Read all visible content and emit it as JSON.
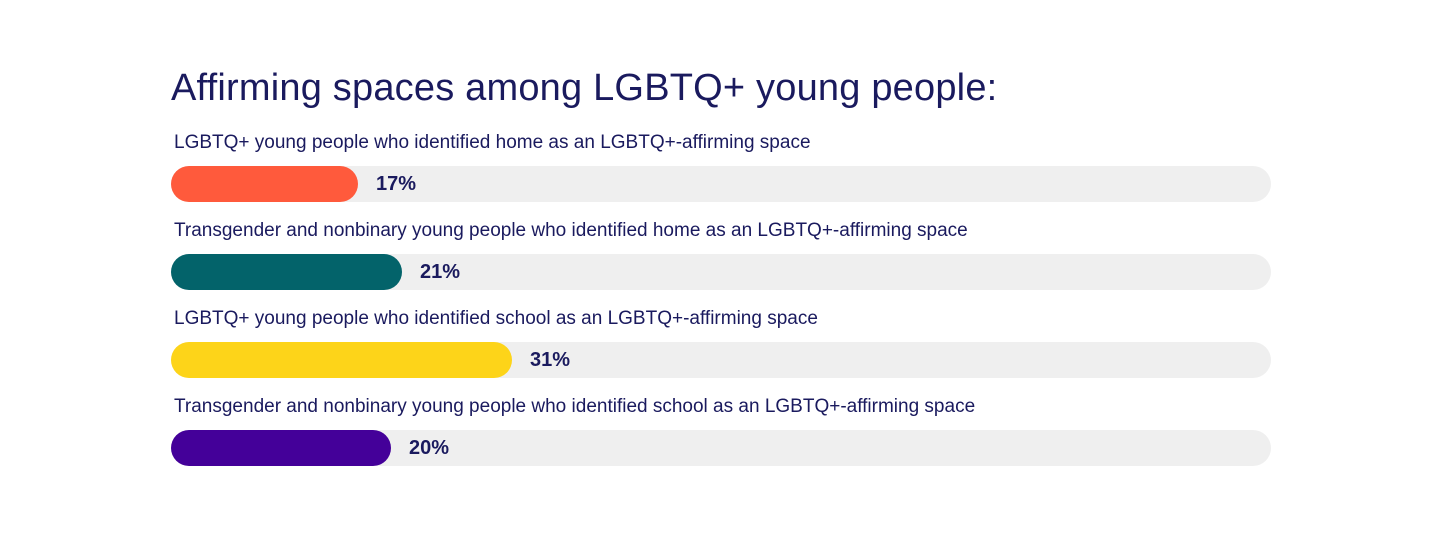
{
  "chart_data": {
    "type": "bar",
    "title": "Affirming spaces among LGBTQ+ young people:",
    "orientation": "horizontal",
    "xlim": [
      0,
      100
    ],
    "unit": "%",
    "grid": false,
    "categories": [
      "LGBTQ+ young people who identified home as an LGBTQ+-affirming space",
      "Transgender and nonbinary young people who identified home as an LGBTQ+-affirming space",
      "LGBTQ+ young people who identified school as an LGBTQ+-affirming space",
      "Transgender and nonbinary young people who identified school as an LGBTQ+-affirming space"
    ],
    "values": [
      17,
      21,
      31,
      20
    ],
    "value_labels": [
      "17%",
      "21%",
      "31%",
      "20%"
    ],
    "colors": [
      "#ff5a3c",
      "#03636a",
      "#fdd419",
      "#440099"
    ],
    "track_color": "#efefef"
  }
}
